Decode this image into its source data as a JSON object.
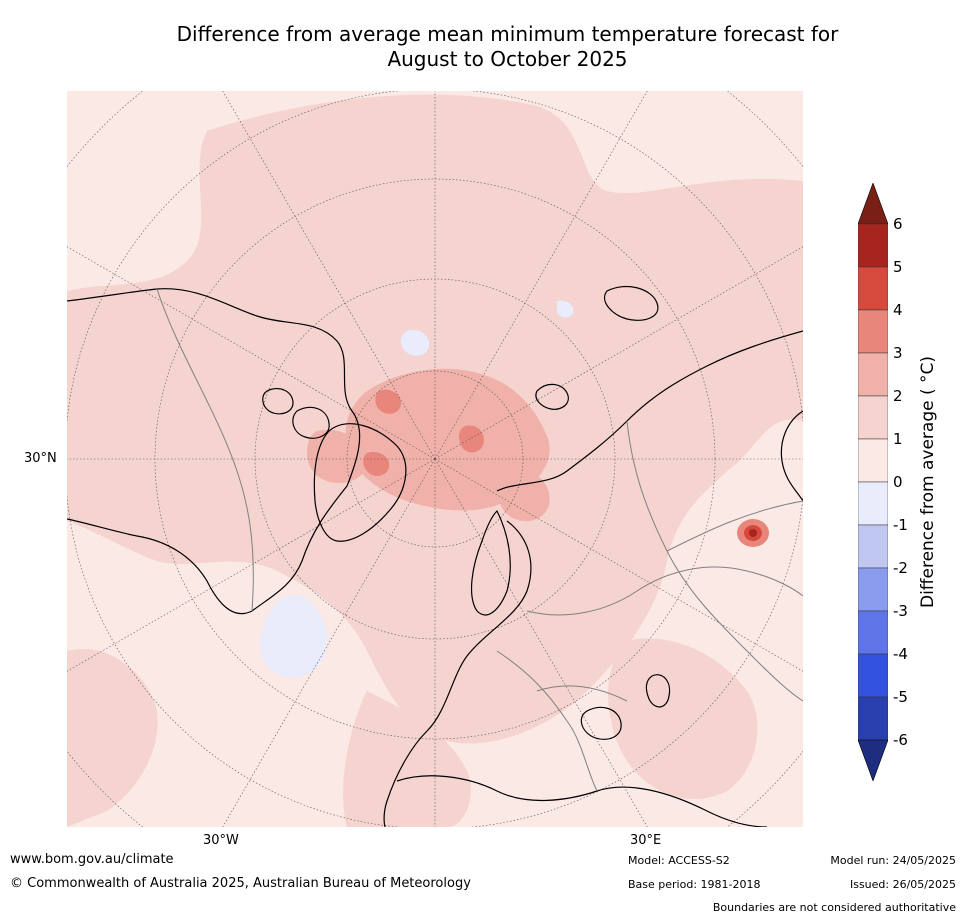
{
  "title_line1": "Difference from average mean minimum temperature forecast for",
  "title_line2": "August to October 2025",
  "map": {
    "projection": "north-polar-stereographic",
    "gridline_labels": {
      "lat_30n": "30°N",
      "lon_30w": "30°W",
      "lon_30e": "30°E"
    },
    "regions": [
      {
        "name": "arctic-ocean-warm-anomaly",
        "level": "2 to 3"
      },
      {
        "name": "greenland-warm-anomaly",
        "level": "2 to 3"
      },
      {
        "name": "north-atlantic-cool-anomaly",
        "level": "0 to -1"
      },
      {
        "name": "central-asia-hotspot",
        "level": "4 to 5"
      }
    ],
    "colors": {
      "ocean_background": "#fbe9e6",
      "land_outline": "#000000",
      "borders": "#808080"
    }
  },
  "colorbar": {
    "label": "Difference from average ( °C)",
    "ticks": [
      "6",
      "5",
      "4",
      "3",
      "2",
      "1",
      "0",
      "-1",
      "-2",
      "-3",
      "-4",
      "-5",
      "-6"
    ],
    "colors": [
      "#a7251e",
      "#d64a3e",
      "#e8867c",
      "#efb1a9",
      "#f5d3cf",
      "#fbe9e6",
      "#e8ecfb",
      "#c0c8f2",
      "#8a9bee",
      "#5f74e6",
      "#3352e0",
      "#2a3fae"
    ],
    "extend_high_color": "#7a1f15",
    "extend_low_color": "#1f2d80"
  },
  "footer": {
    "url": "www.bom.gov.au/climate",
    "copyright": "© Commonwealth of Australia 2025, Australian Bureau of Meteorology",
    "model": "Model: ACCESS-S2",
    "base_period": "Base period: 1981-2018",
    "model_run": "Model run: 24/05/2025",
    "issued": "Issued: 26/05/2025",
    "disclaimer": "Boundaries are not considered authoritative"
  }
}
